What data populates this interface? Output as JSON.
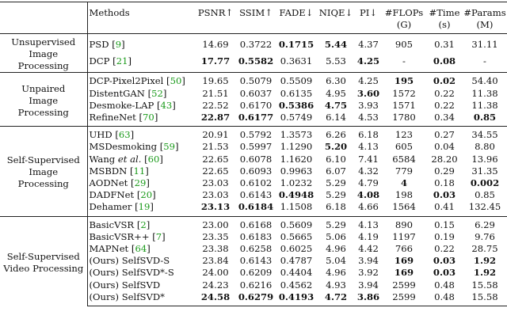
{
  "headers": {
    "methods": "Methods",
    "psnr": "PSNR↑",
    "ssim": "SSIM↑",
    "fade": "FADE↓",
    "niqe": "NIQE↓",
    "pi": "PI↓",
    "flops_l1": "#FLOPs",
    "flops_l2": "(G)",
    "time_l1": "#Time",
    "time_l2": "(s)",
    "params_l1": "#Params",
    "params_l2": "(M)"
  },
  "groups": [
    {
      "category": [
        "Unsupervised",
        "Image Processing"
      ],
      "rows": [
        {
          "method": "PSD",
          "ref": "9",
          "psnr": "14.69",
          "ssim": "0.3722",
          "fade": "0.1715",
          "niqe": "5.44",
          "pi": "4.37",
          "flops": "905",
          "time": "0.31",
          "params": "31.11"
        },
        {
          "method": "DCP",
          "ref": "21",
          "psnr": "17.77",
          "ssim": "0.5582",
          "fade": "0.3631",
          "niqe": "5.53",
          "pi": "4.25",
          "flops": "-",
          "time": "0.08",
          "params": "-"
        }
      ]
    },
    {
      "category": [
        "Unpaired",
        "Image Processing"
      ],
      "rows": [
        {
          "method": "DCP-Pixel2Pixel",
          "ref": "50",
          "psnr": "19.65",
          "ssim": "0.5079",
          "fade": "0.5509",
          "niqe": "6.30",
          "pi": "4.25",
          "flops": "195",
          "time": "0.02",
          "params": "54.40"
        },
        {
          "method": "DistentGAN",
          "ref": "52",
          "psnr": "21.51",
          "ssim": "0.6037",
          "fade": "0.6135",
          "niqe": "4.95",
          "pi": "3.60",
          "flops": "1572",
          "time": "0.22",
          "params": "11.38"
        },
        {
          "method": "Desmoke-LAP",
          "ref": "43",
          "psnr": "22.52",
          "ssim": "0.6170",
          "fade": "0.5386",
          "niqe": "4.75",
          "pi": "3.93",
          "flops": "1571",
          "time": "0.22",
          "params": "11.38"
        },
        {
          "method": "RefineNet",
          "ref": "70",
          "psnr": "22.87",
          "ssim": "0.6177",
          "fade": "0.5749",
          "niqe": "6.14",
          "pi": "4.53",
          "flops": "1780",
          "time": "0.34",
          "params": "0.85"
        }
      ]
    },
    {
      "category": [
        "Self-Supervised",
        "Image Processing"
      ],
      "rows": [
        {
          "method": "UHD",
          "ref": "63",
          "psnr": "20.91",
          "ssim": "0.5792",
          "fade": "1.3573",
          "niqe": "6.26",
          "pi": "6.18",
          "flops": "123",
          "time": "0.27",
          "params": "34.55"
        },
        {
          "method": "MSDesmoking",
          "ref": "59",
          "psnr": "21.53",
          "ssim": "0.5997",
          "fade": "1.1290",
          "niqe": "5.20",
          "pi": "4.13",
          "flops": "605",
          "time": "0.04",
          "params": "8.80"
        },
        {
          "method": "Wang",
          "method_suffix": "et al.",
          "ref": "60",
          "psnr": "22.65",
          "ssim": "0.6078",
          "fade": "1.1620",
          "niqe": "6.10",
          "pi": "7.41",
          "flops": "6584",
          "time": "28.20",
          "params": "13.96"
        },
        {
          "method": "MSBDN",
          "ref": "11",
          "psnr": "22.65",
          "ssim": "0.6093",
          "fade": "0.9963",
          "niqe": "6.07",
          "pi": "4.32",
          "flops": "779",
          "time": "0.29",
          "params": "31.35"
        },
        {
          "method": "AODNet",
          "ref": "29",
          "psnr": "23.03",
          "ssim": "0.6102",
          "fade": "1.0232",
          "niqe": "5.29",
          "pi": "4.79",
          "flops": "4",
          "time": "0.18",
          "params": "0.002"
        },
        {
          "method": "DADFNet",
          "ref": "20",
          "psnr": "23.03",
          "ssim": "0.6143",
          "fade": "0.4948",
          "niqe": "5.29",
          "pi": "4.08",
          "flops": "198",
          "time": "0.03",
          "params": "0.85"
        },
        {
          "method": "Dehamer",
          "ref": "19",
          "psnr": "23.13",
          "ssim": "0.6184",
          "fade": "1.1508",
          "niqe": "6.18",
          "pi": "4.66",
          "flops": "1564",
          "time": "0.41",
          "params": "132.45"
        }
      ]
    },
    {
      "category": [
        "Self-Supervised",
        "Video Processing"
      ],
      "rows": [
        {
          "method": "BasicVSR",
          "ref": "2",
          "psnr": "23.00",
          "ssim": "0.6168",
          "fade": "0.5609",
          "niqe": "5.29",
          "pi": "4.13",
          "flops": "890",
          "time": "0.15",
          "params": "6.29"
        },
        {
          "method": "BasicVSR++",
          "ref": "7",
          "psnr": "23.35",
          "ssim": "0.6183",
          "fade": "0.5665",
          "niqe": "5.06",
          "pi": "4.19",
          "flops": "1197",
          "time": "0.19",
          "params": "9.76"
        },
        {
          "method": "MAPNet",
          "ref": "64",
          "psnr": "23.38",
          "ssim": "0.6258",
          "fade": "0.6025",
          "niqe": "4.96",
          "pi": "4.42",
          "flops": "766",
          "time": "0.22",
          "params": "28.75"
        },
        {
          "method": "(Ours) SelfSVD-S",
          "psnr": "23.84",
          "ssim": "0.6143",
          "fade": "0.4787",
          "niqe": "5.04",
          "pi": "3.94",
          "flops": "169",
          "time": "0.03",
          "params": "1.92"
        },
        {
          "method": "(Ours) SelfSVD*-S",
          "psnr": "24.00",
          "ssim": "0.6209",
          "fade": "0.4404",
          "niqe": "4.96",
          "pi": "3.92",
          "flops": "169",
          "time": "0.03",
          "params": "1.92"
        },
        {
          "method": "(Ours) SelfSVD",
          "psnr": "24.23",
          "ssim": "0.6216",
          "fade": "0.4562",
          "niqe": "4.93",
          "pi": "3.94",
          "flops": "2599",
          "time": "0.48",
          "params": "15.58"
        },
        {
          "method": "(Ours) SelfSVD*",
          "psnr": "24.58",
          "ssim": "0.6279",
          "fade": "0.4193",
          "niqe": "4.72",
          "pi": "3.86",
          "flops": "2599",
          "time": "0.48",
          "params": "15.58"
        }
      ]
    }
  ],
  "emphasis": {
    "bold": [
      "0.0.fade",
      "0.0.niqe",
      "0.1.psnr",
      "0.1.ssim",
      "0.1.pi",
      "0.1.time",
      "1.0.flops",
      "1.0.time",
      "1.1.pi",
      "1.2.fade",
      "1.2.niqe",
      "1.3.psnr",
      "1.3.ssim",
      "1.3.params",
      "2.1.niqe",
      "2.4.flops",
      "2.4.params",
      "2.5.fade",
      "2.5.pi",
      "2.5.time",
      "2.6.psnr",
      "2.6.ssim",
      "3.3.flops",
      "3.3.time",
      "3.3.params",
      "3.4.flops",
      "3.4.time",
      "3.4.params",
      "3.6.psnr",
      "3.6.ssim",
      "3.6.fade",
      "3.6.niqe",
      "3.6.pi"
    ],
    "underline": []
  }
}
